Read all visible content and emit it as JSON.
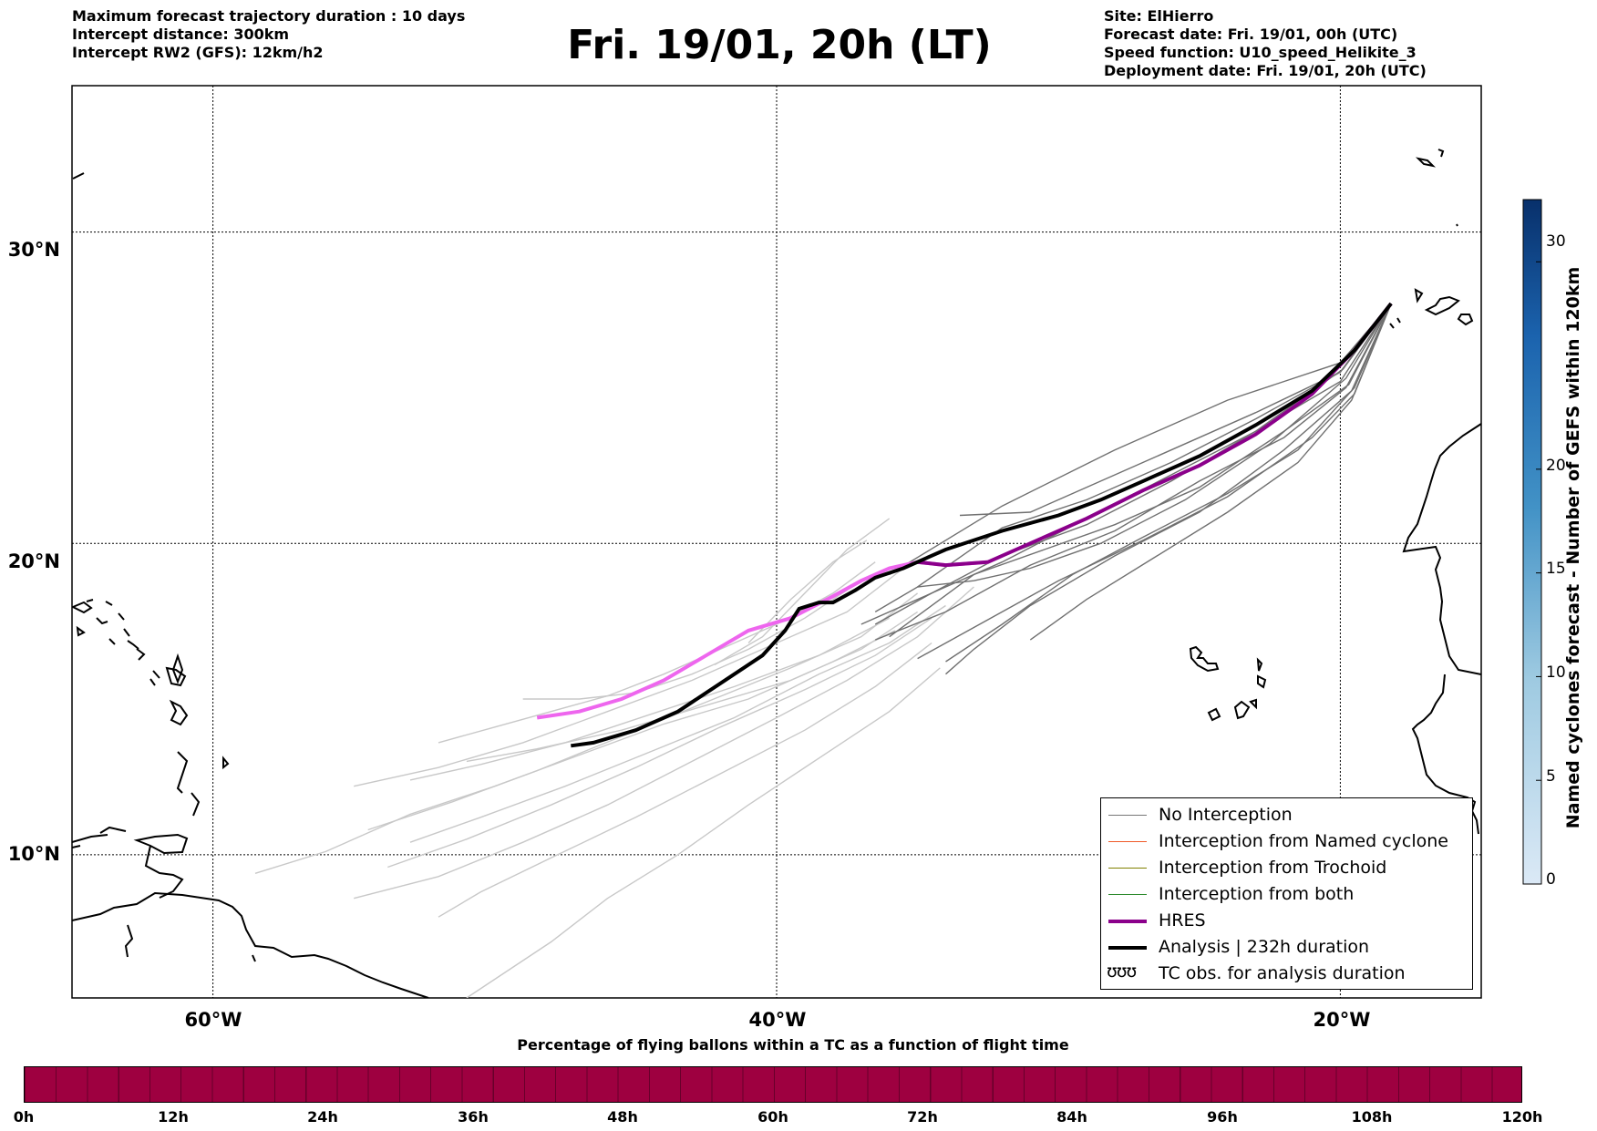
{
  "header": {
    "left_lines": [
      "Maximum forecast trajectory duration : 10 days",
      "Intercept distance: 300km",
      "Intercept RW2 (GFS):  12km/h2"
    ],
    "title": "Fri. 19/01, 20h (LT)",
    "right_lines": [
      "Site: ElHierro",
      "Forecast date: Fri. 19/01, 00h (UTC)",
      "Speed function: U10_speed_Helikite_3",
      "Deployment date: Fri. 19/01, 20h (UTC)"
    ]
  },
  "map": {
    "lat_labels": [
      "30°N",
      "20°N",
      "10°N"
    ],
    "lon_labels": [
      "60°W",
      "40°W",
      "20°W"
    ],
    "lat_values": [
      30,
      20,
      10
    ],
    "lon_values": [
      -60,
      -40,
      -20
    ],
    "extent": {
      "lon_min": -65,
      "lon_max": -15,
      "lat_min": 5.4,
      "lat_max": 34.7
    },
    "launch_site": {
      "lon": -18.2,
      "lat": 27.7
    }
  },
  "legend": {
    "items": [
      {
        "label": "No Interception",
        "color": "#777777",
        "width": 1
      },
      {
        "label": "Interception from Named cyclone",
        "color": "#f05a28",
        "width": 1
      },
      {
        "label": "Interception from Trochoid",
        "color": "#808000",
        "width": 1
      },
      {
        "label": "Interception from both",
        "color": "#2e8b2e",
        "width": 1
      },
      {
        "label": "HRES",
        "color": "#8b008b",
        "width": 4
      },
      {
        "label": "Analysis | 232h duration",
        "color": "#000000",
        "width": 4
      },
      {
        "label": "TC obs. for analysis duration",
        "symbol": "ʊʊʊ"
      }
    ]
  },
  "colorbar": {
    "title": "Named cyclones forecast - Number of GEFS within 120km",
    "ticks": [
      "0",
      "5",
      "10",
      "15",
      "20",
      "30"
    ],
    "tick_values": [
      0,
      5,
      10,
      15,
      20,
      30
    ],
    "min": 0,
    "max": 33,
    "color_low": "#dbe9f6",
    "color_high": "#08306b"
  },
  "pct_bar": {
    "title": "Percentage of flying ballons within a TC as a function of flight time",
    "color": "#9e0040",
    "ticks": [
      "0h",
      "12h",
      "24h",
      "36h",
      "48h",
      "60h",
      "72h",
      "84h",
      "96h",
      "108h",
      "120h"
    ]
  },
  "trajectories": {
    "hres": {
      "color": "#8b008b",
      "tail_color": "#ee66ee",
      "points": [
        [
          -18.2,
          27.7
        ],
        [
          -19.5,
          26.2
        ],
        [
          -21,
          24.8
        ],
        [
          -23,
          23.5
        ],
        [
          -25,
          22.5
        ],
        [
          -27,
          21.7
        ],
        [
          -29,
          20.8
        ],
        [
          -31,
          20.0
        ],
        [
          -32.5,
          19.4
        ],
        [
          -34,
          19.3
        ],
        [
          -35,
          19.4
        ],
        [
          -36,
          19.2
        ],
        [
          -37,
          18.8
        ],
        [
          -38,
          18.3
        ],
        [
          -39.5,
          17.6
        ],
        [
          -41,
          17.2
        ],
        [
          -42.5,
          16.4
        ],
        [
          -44,
          15.6
        ],
        [
          -45.5,
          15.0
        ],
        [
          -47,
          14.6
        ],
        [
          -48.5,
          14.4
        ]
      ]
    },
    "analysis": {
      "color": "#000000",
      "points": [
        [
          -18.2,
          27.7
        ],
        [
          -19.5,
          26.2
        ],
        [
          -21,
          24.9
        ],
        [
          -23,
          23.8
        ],
        [
          -25,
          22.8
        ],
        [
          -27,
          22.0
        ],
        [
          -28.5,
          21.4
        ],
        [
          -30,
          20.9
        ],
        [
          -32,
          20.4
        ],
        [
          -34,
          19.8
        ],
        [
          -35.5,
          19.2
        ],
        [
          -36.5,
          18.9
        ],
        [
          -37.2,
          18.5
        ],
        [
          -38,
          18.1
        ],
        [
          -38.5,
          18.1
        ],
        [
          -39.2,
          17.9
        ],
        [
          -39.7,
          17.2
        ],
        [
          -40.5,
          16.4
        ],
        [
          -42,
          15.5
        ],
        [
          -43.5,
          14.6
        ],
        [
          -45,
          14.0
        ],
        [
          -46.5,
          13.6
        ],
        [
          -47.3,
          13.5
        ]
      ]
    },
    "no_interception_dark": [
      [
        [
          -18.2,
          27.7
        ],
        [
          -20,
          25.5
        ],
        [
          -23,
          24.2
        ],
        [
          -27,
          22.6
        ],
        [
          -31,
          21.0
        ],
        [
          -33.5,
          20.9
        ]
      ],
      [
        [
          -18.2,
          27.7
        ],
        [
          -20,
          25.8
        ],
        [
          -24,
          24.6
        ],
        [
          -28,
          23.0
        ],
        [
          -32,
          21.2
        ],
        [
          -36,
          19.0
        ]
      ],
      [
        [
          -18.2,
          27.7
        ],
        [
          -20,
          25.5
        ],
        [
          -23,
          24.0
        ],
        [
          -26,
          22.6
        ],
        [
          -29,
          21.4
        ],
        [
          -32,
          20.5
        ],
        [
          -35,
          18.6
        ]
      ],
      [
        [
          -18.2,
          27.7
        ],
        [
          -20,
          25.2
        ],
        [
          -23,
          23.6
        ],
        [
          -26,
          22.2
        ],
        [
          -29,
          20.8
        ],
        [
          -32,
          19.4
        ],
        [
          -35,
          18.2
        ],
        [
          -37,
          17.4
        ]
      ],
      [
        [
          -18.2,
          27.7
        ],
        [
          -19.8,
          25.0
        ],
        [
          -22,
          23.4
        ],
        [
          -25,
          22.0
        ],
        [
          -28,
          20.4
        ],
        [
          -31,
          19.3
        ],
        [
          -34,
          17.8
        ],
        [
          -36.5,
          16.9
        ]
      ],
      [
        [
          -18.2,
          27.7
        ],
        [
          -19.5,
          24.8
        ],
        [
          -21,
          23.4
        ],
        [
          -24,
          21.5
        ],
        [
          -27,
          20.1
        ],
        [
          -30,
          18.8
        ],
        [
          -33,
          17.3
        ],
        [
          -35,
          16.3
        ]
      ],
      [
        [
          -18.2,
          27.7
        ],
        [
          -19.6,
          24.9
        ],
        [
          -22,
          23.0
        ],
        [
          -25,
          21.0
        ],
        [
          -28,
          19.6
        ],
        [
          -31,
          18.0
        ],
        [
          -33,
          16.6
        ],
        [
          -34,
          15.8
        ]
      ],
      [
        [
          -18.2,
          27.7
        ],
        [
          -19.8,
          25.3
        ],
        [
          -22.5,
          23.2
        ],
        [
          -25.5,
          21.4
        ],
        [
          -28.5,
          20.0
        ],
        [
          -31,
          19.2
        ],
        [
          -33,
          18.8
        ],
        [
          -35,
          18.6
        ],
        [
          -36.5,
          17.8
        ]
      ],
      [
        [
          -18.2,
          27.7
        ],
        [
          -19.7,
          25.1
        ],
        [
          -22,
          23.6
        ],
        [
          -25,
          21.8
        ],
        [
          -28,
          20.6
        ],
        [
          -30.5,
          19.8
        ],
        [
          -33,
          19.0
        ],
        [
          -36,
          17.0
        ]
      ],
      [
        [
          -18.2,
          27.7
        ],
        [
          -19.5,
          25.0
        ],
        [
          -21.5,
          23.0
        ],
        [
          -24,
          21.6
        ],
        [
          -27,
          20.2
        ],
        [
          -29.5,
          19.0
        ],
        [
          -32,
          17.4
        ],
        [
          -34,
          16.2
        ]
      ],
      [
        [
          -18.2,
          27.7
        ],
        [
          -19.6,
          24.6
        ],
        [
          -21.5,
          22.6
        ],
        [
          -24,
          21.0
        ],
        [
          -26.5,
          19.6
        ],
        [
          -29,
          18.2
        ],
        [
          -31,
          16.9
        ]
      ],
      [
        [
          -18.2,
          27.7
        ],
        [
          -19.9,
          25.6
        ],
        [
          -23,
          23.6
        ],
        [
          -26,
          22.0
        ],
        [
          -29,
          20.6
        ],
        [
          -32,
          19.6
        ],
        [
          -34.5,
          18.4
        ],
        [
          -36.5,
          17.4
        ]
      ]
    ],
    "no_interception_light": [
      [
        [
          -36.5,
          19.4
        ],
        [
          -38,
          18.4
        ],
        [
          -40,
          17.4
        ],
        [
          -42,
          16.6
        ],
        [
          -44,
          15.8
        ],
        [
          -46,
          15.1
        ],
        [
          -48,
          14.6
        ],
        [
          -50,
          14.1
        ],
        [
          -52,
          13.6
        ]
      ],
      [
        [
          -35.5,
          19.2
        ],
        [
          -37.5,
          17.8
        ],
        [
          -40,
          16.8
        ],
        [
          -43,
          15.6
        ],
        [
          -46,
          14.6
        ],
        [
          -49,
          13.6
        ],
        [
          -52,
          12.8
        ],
        [
          -55,
          12.2
        ]
      ],
      [
        [
          -35,
          18.4
        ],
        [
          -37,
          17.0
        ],
        [
          -39.5,
          16.0
        ],
        [
          -42.5,
          14.9
        ],
        [
          -45.5,
          13.8
        ],
        [
          -48.5,
          12.7
        ],
        [
          -51.5,
          11.7
        ],
        [
          -54.5,
          10.8
        ]
      ],
      [
        [
          -34.5,
          17.6
        ],
        [
          -36.5,
          16.4
        ],
        [
          -39,
          15.3
        ],
        [
          -42,
          14.1
        ],
        [
          -45,
          12.8
        ],
        [
          -48,
          11.6
        ],
        [
          -51,
          10.5
        ],
        [
          -53.8,
          9.6
        ]
      ],
      [
        [
          -34.5,
          16.8
        ],
        [
          -36.5,
          15.4
        ],
        [
          -39,
          14.0
        ],
        [
          -42,
          12.6
        ],
        [
          -45,
          11.2
        ],
        [
          -48,
          9.9
        ],
        [
          -50.5,
          8.8
        ],
        [
          -52,
          8.0
        ]
      ],
      [
        [
          -34.2,
          16.0
        ],
        [
          -36,
          14.6
        ],
        [
          -38.5,
          13.1
        ],
        [
          -41,
          11.6
        ],
        [
          -43.5,
          10.0
        ],
        [
          -46,
          8.6
        ],
        [
          -48,
          7.2
        ],
        [
          -51,
          5.4
        ]
      ],
      [
        [
          -36,
          17.6
        ],
        [
          -38.5,
          16.4
        ],
        [
          -41.5,
          15.4
        ],
        [
          -44.5,
          14.5
        ],
        [
          -47.5,
          13.6
        ],
        [
          -50.5,
          12.9
        ],
        [
          -53,
          12.4
        ]
      ],
      [
        [
          -35.8,
          17.2
        ],
        [
          -38,
          16.2
        ],
        [
          -41,
          15.0
        ],
        [
          -44,
          14.2
        ],
        [
          -47,
          13.2
        ],
        [
          -50,
          12.2
        ],
        [
          -53,
          11.3
        ],
        [
          -56,
          10.1
        ],
        [
          -58.5,
          9.4
        ]
      ],
      [
        [
          -33,
          18.6
        ],
        [
          -35,
          17.0
        ],
        [
          -37.5,
          15.6
        ],
        [
          -40,
          14.4
        ],
        [
          -43,
          13.0
        ],
        [
          -46,
          11.6
        ],
        [
          -49,
          10.4
        ],
        [
          -52,
          9.3
        ],
        [
          -55,
          8.6
        ]
      ],
      [
        [
          -37,
          18.8
        ],
        [
          -39,
          17.6
        ],
        [
          -41,
          16.6
        ],
        [
          -43,
          15.8
        ],
        [
          -45,
          15.2
        ],
        [
          -47,
          15.0
        ],
        [
          -49,
          15.0
        ]
      ],
      [
        [
          -36.8,
          20.1
        ],
        [
          -38,
          19.4
        ],
        [
          -39.5,
          18.2
        ],
        [
          -41,
          16.8
        ]
      ],
      [
        [
          -36,
          20.8
        ],
        [
          -37.5,
          19.8
        ],
        [
          -39,
          18.4
        ],
        [
          -40.5,
          17.0
        ],
        [
          -42.2,
          16.1
        ]
      ],
      [
        [
          -35,
          17.8
        ],
        [
          -37,
          16.6
        ],
        [
          -39.5,
          15.6
        ],
        [
          -42.5,
          14.8
        ],
        [
          -45.5,
          14.0
        ],
        [
          -48.5,
          13.4
        ],
        [
          -51,
          13.0
        ]
      ],
      [
        [
          -34,
          18.0
        ],
        [
          -36,
          16.8
        ],
        [
          -38.5,
          15.8
        ],
        [
          -41.5,
          14.4
        ],
        [
          -44.5,
          13.3
        ],
        [
          -47.5,
          12.2
        ],
        [
          -50.5,
          11.2
        ],
        [
          -53,
          10.4
        ]
      ]
    ]
  }
}
